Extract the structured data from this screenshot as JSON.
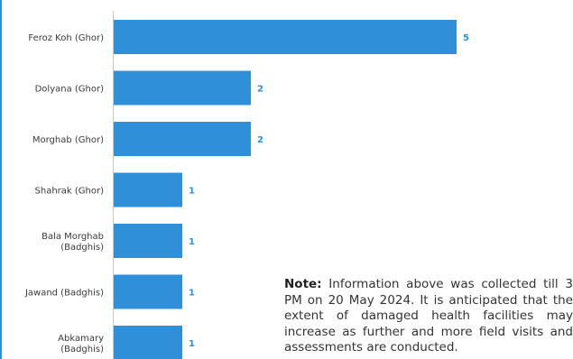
{
  "chart_data": {
    "type": "bar",
    "orientation": "horizontal",
    "categories": [
      "Feroz Koh (Ghor)",
      "Dolyana (Ghor)",
      "Morghab (Ghor)",
      "Shahrak (Ghor)",
      "Bala Morghab\n(Badghis)",
      "Jawand (Badghis)",
      "Abkamary\n(Badghis)"
    ],
    "values": [
      5,
      2,
      2,
      1,
      1,
      1,
      1
    ],
    "xlim": [
      0,
      5.3
    ],
    "grid": false,
    "bar_color": "#2f8fd8",
    "value_label_color": "#2f8fd8"
  },
  "note": {
    "title": "Note:",
    "body": " Information above was collected till 3 PM on 20 May 2024. It is anticipated that the extent of damaged health facilities may increase as further and more field visits and assessments are conducted."
  }
}
